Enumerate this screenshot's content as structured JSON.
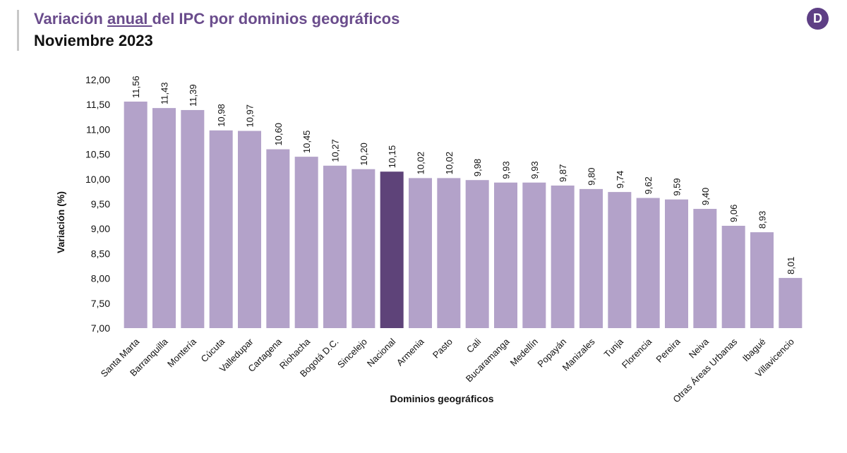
{
  "header": {
    "title_part1": "Variación ",
    "title_underlined": "anual ",
    "title_part2": "del IPC por dominios geográficos",
    "subtitle": "Noviembre 2023",
    "logo_letter": "D"
  },
  "colors": {
    "bar": "#b3a2c9",
    "highlight": "#5e4379",
    "title": "#6a4c8c",
    "logo": "#5e3f85"
  },
  "chart_data": {
    "type": "bar",
    "xlabel": "Dominios geográficos",
    "ylabel": "Variación (%)",
    "ylim": [
      7.0,
      12.0
    ],
    "yticks": [
      "12,00",
      "11,50",
      "11,00",
      "10,50",
      "10,00",
      "9,50",
      "9,00",
      "8,50",
      "8,00",
      "7,50",
      "7,00"
    ],
    "ytick_values": [
      12.0,
      11.5,
      11.0,
      10.5,
      10.0,
      9.5,
      9.0,
      8.5,
      8.0,
      7.5,
      7.0
    ],
    "grid": false,
    "highlight_category": "Nacional",
    "categories": [
      "Santa Marta",
      "Barranquilla",
      "Montería",
      "Cúcuta",
      "Valledupar",
      "Cartagena",
      "Riohacha",
      "Bogotá D.C.",
      "Sincelejo",
      "Nacional",
      "Armenia",
      "Pasto",
      "Cali",
      "Bucaramanga",
      "Medellín",
      "Popayán",
      "Manizales",
      "Tunja",
      "Florencia",
      "Pereira",
      "Neiva",
      "Otras Áreas Urbanas",
      "Ibagué",
      "Villavicencio"
    ],
    "values": [
      11.56,
      11.43,
      11.39,
      10.98,
      10.97,
      10.6,
      10.45,
      10.27,
      10.2,
      10.15,
      10.02,
      10.02,
      9.98,
      9.93,
      9.93,
      9.87,
      9.8,
      9.74,
      9.62,
      9.59,
      9.4,
      9.06,
      8.93,
      8.01
    ],
    "value_labels": [
      "11,56",
      "11,43",
      "11,39",
      "10,98",
      "10,97",
      "10,60",
      "10,45",
      "10,27",
      "10,20",
      "10,15",
      "10,02",
      "10,02",
      "9,98",
      "9,93",
      "9,93",
      "9,87",
      "9,80",
      "9,74",
      "9,62",
      "9,59",
      "9,40",
      "9,06",
      "8,93",
      "8,01"
    ]
  }
}
